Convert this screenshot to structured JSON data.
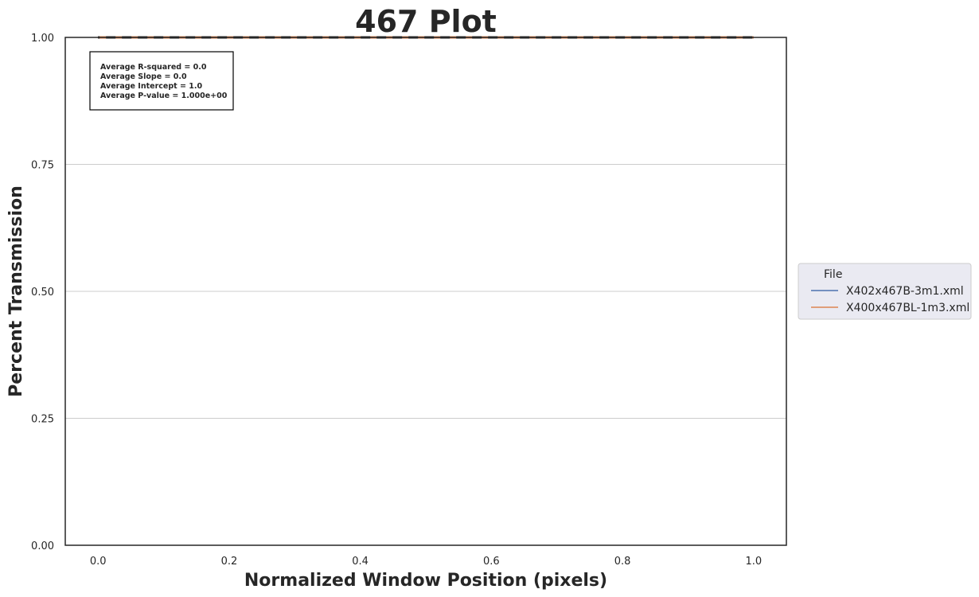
{
  "chart_data": {
    "type": "line",
    "title": "467 Plot",
    "xlabel": "Normalized Window Position (pixels)",
    "ylabel": "Percent Transmission",
    "xlim": [
      -0.05,
      1.05
    ],
    "ylim": [
      0.0,
      1.0
    ],
    "xticks": [
      0.0,
      0.2,
      0.4,
      0.6,
      0.8,
      1.0
    ],
    "xtick_labels": [
      "0.0",
      "0.2",
      "0.4",
      "0.6",
      "0.8",
      "1.0"
    ],
    "yticks": [
      0.0,
      0.25,
      0.5,
      0.75,
      1.0
    ],
    "ytick_labels": [
      "0.00",
      "0.25",
      "0.50",
      "0.75",
      "1.00"
    ],
    "grid": "horizontal",
    "series": [
      {
        "name": "X402x467B-3m1.xml",
        "color": "#4c72b0",
        "x": [
          0.0,
          1.0
        ],
        "y": [
          1.0,
          1.0
        ]
      },
      {
        "name": "X400x467BL-1m3.xml",
        "color": "#dd8452",
        "x": [
          0.0,
          1.0
        ],
        "y": [
          1.0,
          1.0
        ]
      }
    ],
    "fit_lines": [
      {
        "color": "#dd8452",
        "style": "dashed",
        "x": [
          0.0,
          1.0
        ],
        "y": [
          1.0,
          1.0
        ]
      },
      {
        "color": "#262626",
        "style": "dashed",
        "x": [
          0.0,
          1.0
        ],
        "y": [
          1.0,
          1.0
        ]
      }
    ],
    "annotation": [
      "Average R-squared = 0.0",
      "Average Slope = 0.0",
      "Average Intercept = 1.0",
      "Average P-value = 1.000e+00"
    ],
    "legend": {
      "title": "File",
      "placement": "outside-right",
      "entries": [
        "X402x467B-3m1.xml",
        "X400x467BL-1m3.xml"
      ]
    }
  }
}
